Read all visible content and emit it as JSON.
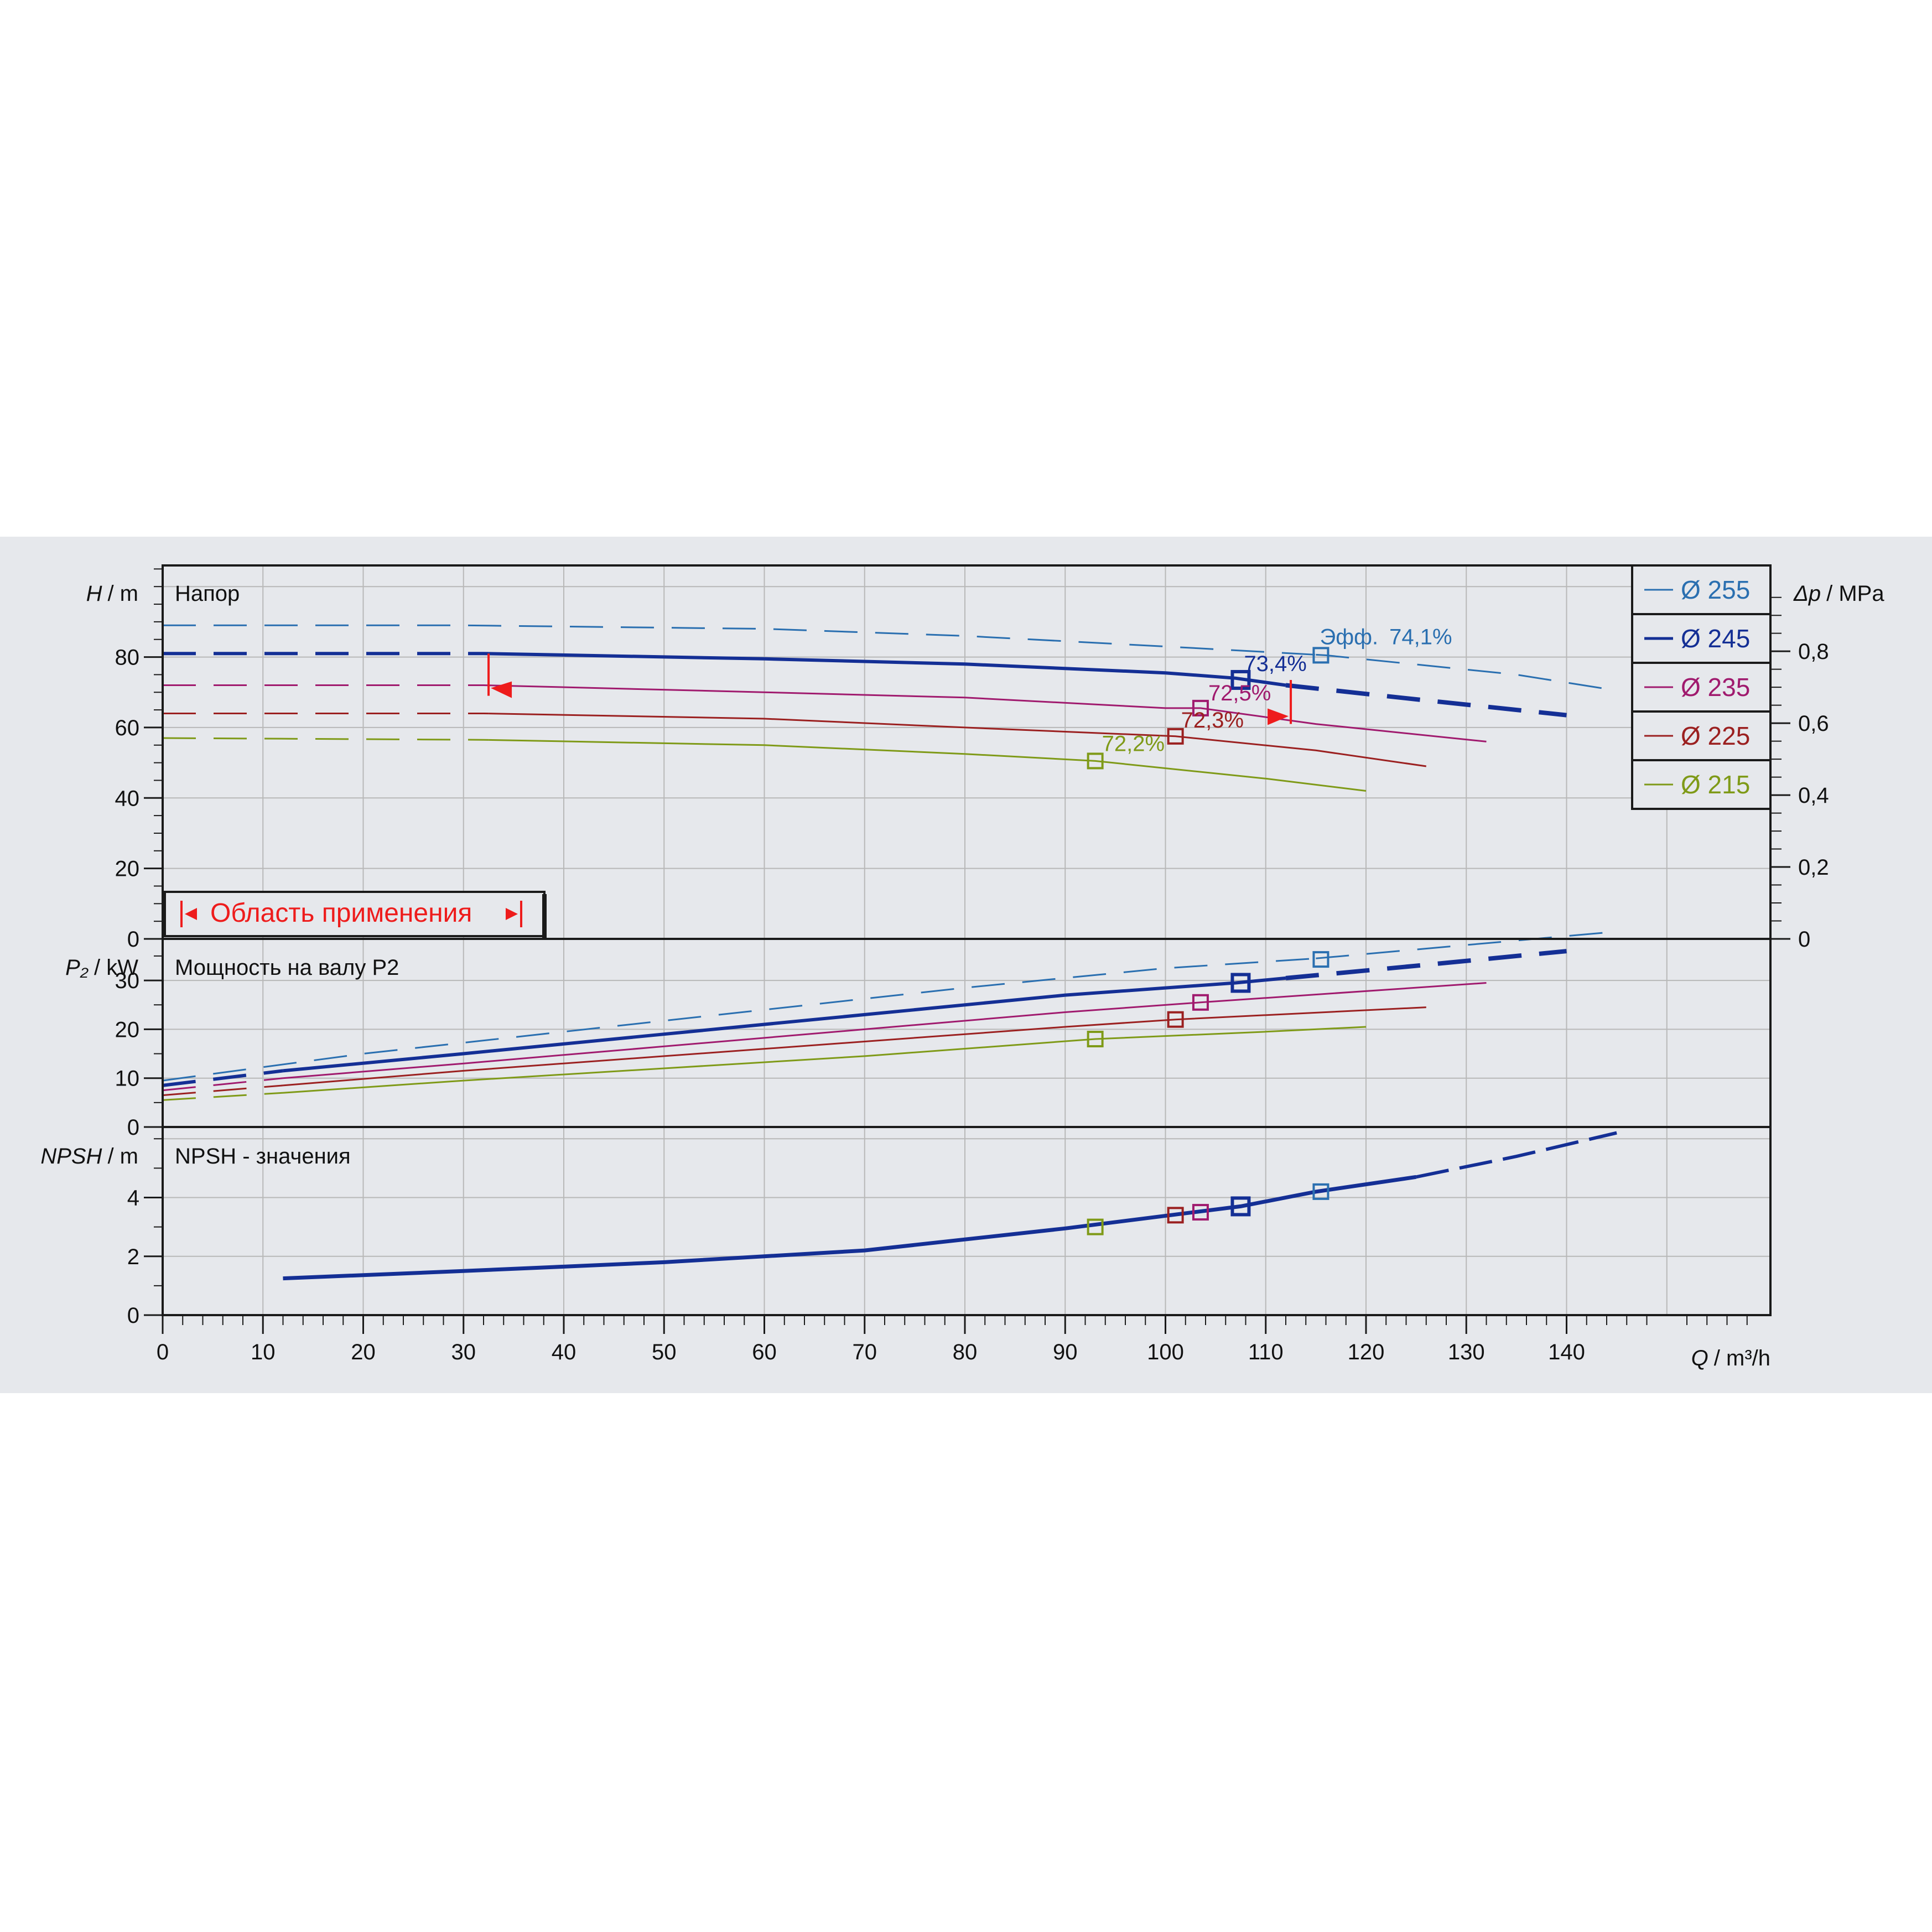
{
  "chart_data": {
    "type": "line",
    "colors": {
      "d255": "#2a6fb0",
      "d245": "#142f95",
      "d235": "#a01a6e",
      "d225": "#9b2020",
      "d215": "#7f9a18",
      "red": "#ee1c1c",
      "background": "#e6e8ec",
      "grid": "#b8b8b8"
    },
    "legend": {
      "placement": "right",
      "entries": [
        {
          "key": "d255",
          "label": "Ø 255"
        },
        {
          "key": "d245",
          "label": "Ø 245"
        },
        {
          "key": "d235",
          "label": "Ø 235"
        },
        {
          "key": "d225",
          "label": "Ø 225"
        },
        {
          "key": "d215",
          "label": "Ø 215"
        }
      ]
    },
    "x_axis": {
      "label_var": "Q",
      "label_unit": "/ m³/h",
      "range": [
        0,
        160
      ],
      "ticks": [
        "0",
        "10",
        "20",
        "30",
        "40",
        "50",
        "60",
        "70",
        "80",
        "90",
        "100",
        "110",
        "120",
        "130",
        "140"
      ]
    },
    "panels": {
      "head": {
        "title": "Напор",
        "ylabel_var": "H",
        "ylabel_unit": "/ m",
        "ylim": [
          0,
          106
        ],
        "yticks": [
          "0",
          "20",
          "40",
          "60",
          "80"
        ],
        "right_axis": {
          "label_var": "Δp",
          "label_unit": "/ MPa",
          "ticks": [
            {
              "v": 0,
              "t": "0"
            },
            {
              "v": 0.2,
              "t": "0,2"
            },
            {
              "v": 0.4,
              "t": "0,4"
            },
            {
              "v": 0.6,
              "t": "0,6"
            },
            {
              "v": 0.8,
              "t": "0,8"
            }
          ]
        },
        "efficiency_prefix": "Эфф.",
        "application_range": {
          "label": "Область применения",
          "q_min": 32.5,
          "q_max": 112.5,
          "h_top": 81,
          "h_bottom": 69
        },
        "series": [
          {
            "key": "d255",
            "dash_to": 115,
            "points": [
              [
                0,
                89
              ],
              [
                30,
                89
              ],
              [
                60,
                88
              ],
              [
                80,
                86
              ],
              [
                100,
                83
              ],
              [
                116,
                80.5
              ],
              [
                135,
                75
              ],
              [
                145,
                70.5
              ]
            ],
            "bep": {
              "q": 115.5,
              "h": 80.5,
              "label": "74,1%"
            }
          },
          {
            "key": "d245",
            "dash_to": 32.5,
            "points": [
              [
                0,
                81
              ],
              [
                32,
                81
              ],
              [
                60,
                79.5
              ],
              [
                80,
                78
              ],
              [
                100,
                75.5
              ],
              [
                107,
                74
              ],
              [
                112,
                72
              ],
              [
                125,
                68
              ],
              [
                140,
                63.5
              ]
            ],
            "bep": {
              "q": 107.5,
              "h": 73.5,
              "label": "73,4%"
            }
          },
          {
            "key": "d235",
            "dash_to": 32.5,
            "points": [
              [
                0,
                72
              ],
              [
                32,
                72
              ],
              [
                60,
                70
              ],
              [
                80,
                68.5
              ],
              [
                100,
                65.5
              ],
              [
                103.5,
                65.5
              ],
              [
                115,
                61
              ],
              [
                132,
                56
              ]
            ],
            "bep": {
              "q": 103.5,
              "h": 65.5,
              "label": "72,5%"
            }
          },
          {
            "key": "d225",
            "dash_to": 32.5,
            "points": [
              [
                0,
                64
              ],
              [
                32,
                64
              ],
              [
                60,
                62.5
              ],
              [
                80,
                60
              ],
              [
                101,
                57.5
              ],
              [
                115,
                53.5
              ],
              [
                126,
                49
              ]
            ],
            "bep": {
              "q": 101,
              "h": 57.5,
              "label": "72,3%"
            }
          },
          {
            "key": "d215",
            "dash_to": 32.5,
            "points": [
              [
                0,
                57
              ],
              [
                32,
                56.5
              ],
              [
                60,
                55
              ],
              [
                80,
                52.5
              ],
              [
                93,
                50.5
              ],
              [
                110,
                45.5
              ],
              [
                120,
                42
              ]
            ],
            "bep": {
              "q": 93,
              "h": 50.5,
              "label": "72,2%"
            }
          }
        ]
      },
      "power": {
        "title": "Мощность на валу P2",
        "ylabel_var": "P₂",
        "ylabel_unit": "/ kW",
        "ylim": [
          0,
          38.5
        ],
        "yticks": [
          "0",
          "10",
          "20",
          "30"
        ],
        "series": [
          {
            "key": "d255",
            "dash_to": 115,
            "points": [
              [
                0,
                9.5
              ],
              [
                20,
                15
              ],
              [
                40,
                19.5
              ],
              [
                60,
                24
              ],
              [
                80,
                28.5
              ],
              [
                100,
                32.5
              ],
              [
                115,
                34.5
              ],
              [
                145,
                40
              ]
            ],
            "bep": {
              "q": 115.5,
              "p": 34.3
            }
          },
          {
            "key": "d245",
            "dash_to": 12,
            "points": [
              [
                0,
                8.5
              ],
              [
                12,
                11.5
              ],
              [
                30,
                15
              ],
              [
                50,
                19
              ],
              [
                70,
                23
              ],
              [
                90,
                27
              ],
              [
                107,
                29.5
              ],
              [
                125,
                33
              ],
              [
                140,
                36
              ]
            ],
            "bep": {
              "q": 107.5,
              "p": 29.5
            }
          },
          {
            "key": "d235",
            "dash_to": 12,
            "points": [
              [
                0,
                7.5
              ],
              [
                12,
                10
              ],
              [
                30,
                13
              ],
              [
                50,
                16.5
              ],
              [
                70,
                20
              ],
              [
                90,
                23.5
              ],
              [
                103.5,
                25.5
              ],
              [
                132,
                29.5
              ]
            ],
            "bep": {
              "q": 103.5,
              "p": 25.5
            }
          },
          {
            "key": "d225",
            "dash_to": 12,
            "points": [
              [
                0,
                6.5
              ],
              [
                12,
                8.5
              ],
              [
                30,
                11.5
              ],
              [
                50,
                14.5
              ],
              [
                70,
                17.5
              ],
              [
                90,
                20.5
              ],
              [
                101,
                22
              ],
              [
                126,
                24.5
              ]
            ],
            "bep": {
              "q": 101,
              "p": 22
            }
          },
          {
            "key": "d215",
            "dash_to": 12,
            "points": [
              [
                0,
                5.5
              ],
              [
                12,
                7
              ],
              [
                30,
                9.5
              ],
              [
                50,
                12
              ],
              [
                70,
                14.5
              ],
              [
                93,
                18
              ],
              [
                110,
                19.5
              ],
              [
                120,
                20.5
              ]
            ],
            "bep": {
              "q": 93,
              "p": 18
            }
          }
        ]
      },
      "npsh": {
        "title": "NPSH - значения",
        "ylabel_var": "NPSH",
        "ylabel_unit": "/ m",
        "ylim": [
          0,
          6.4
        ],
        "yticks": [
          "0",
          "2",
          "4"
        ],
        "series": [
          {
            "key": "d245",
            "dash_to": 0,
            "points": [
              [
                12,
                1.25
              ],
              [
                30,
                1.5
              ],
              [
                50,
                1.8
              ],
              [
                70,
                2.2
              ],
              [
                90,
                2.95
              ],
              [
                107.5,
                3.7
              ],
              [
                115,
                4.2
              ],
              [
                125,
                4.7
              ],
              [
                135,
                5.4
              ],
              [
                145,
                6.2
              ]
            ]
          }
        ],
        "markers": [
          {
            "key": "d215",
            "q": 93,
            "v": 3.0
          },
          {
            "key": "d225",
            "q": 101,
            "v": 3.4
          },
          {
            "key": "d235",
            "q": 103.5,
            "v": 3.5
          },
          {
            "key": "d245",
            "q": 107.5,
            "v": 3.7
          },
          {
            "key": "d255",
            "q": 115.5,
            "v": 4.2
          }
        ]
      }
    }
  }
}
